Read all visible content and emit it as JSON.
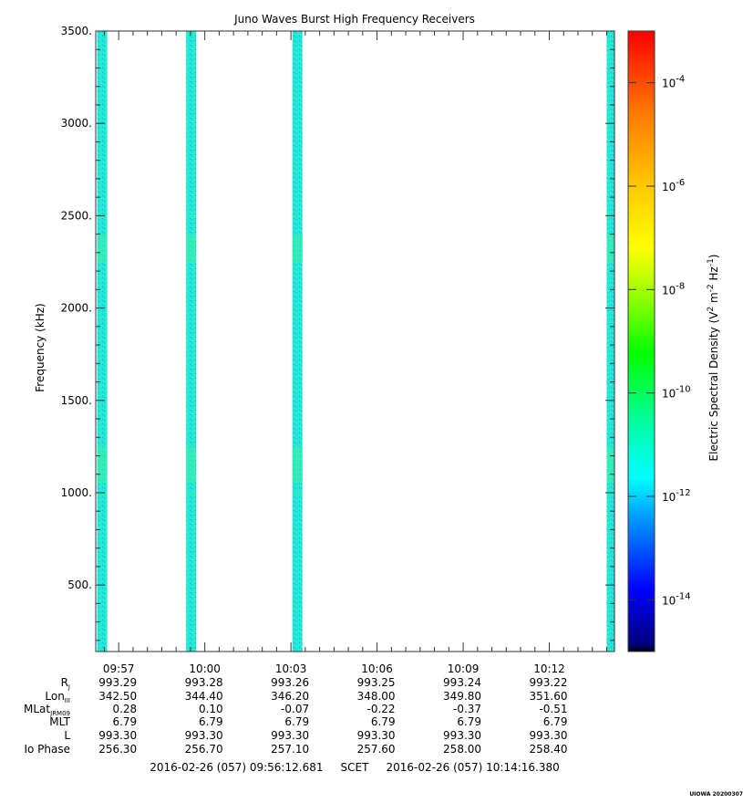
{
  "chart_data": {
    "type": "heatmap",
    "title": "Juno Waves Burst High Frequency Receivers",
    "ylabel": "Frequency (kHz)",
    "ylim": [
      140,
      3500
    ],
    "y_ticks": [
      "500.",
      "1000.",
      "1500.",
      "2000.",
      "2500.",
      "3000.",
      "3500."
    ],
    "y_tick_values": [
      500,
      1000,
      1500,
      2000,
      2500,
      3000,
      3500
    ],
    "x_tick_labels": [
      "09:57",
      "10:00",
      "10:03",
      "10:06",
      "10:09",
      "10:12"
    ],
    "x_tick_minutes": [
      597,
      600,
      603,
      606,
      609,
      612
    ],
    "x_range_minutes": [
      596.2,
      614.27
    ],
    "bursts_start_minutes": [
      596.25,
      599.35,
      603.05,
      614.0
    ],
    "bursts_end_minutes": [
      596.6,
      599.7,
      603.4,
      614.27
    ],
    "colorbar": {
      "label": "Electric Spectral Density (V",
      "label_sup1": "2",
      "label_mid": " m",
      "label_sup2": "-2",
      "label_mid2": " Hz",
      "label_sup3": "-1",
      "label_end": ")",
      "log_min": -15,
      "log_max": -3,
      "tick_base": "10",
      "tick_exponents": [
        "-14",
        "-12",
        "-10",
        "-8",
        "-6",
        "-4"
      ],
      "tick_values": [
        -14,
        -12,
        -10,
        -8,
        -6,
        -4
      ]
    },
    "ephemeris": {
      "labels": [
        "R",
        "Lon",
        "MLat",
        "MLT",
        "L",
        "Io Phase"
      ],
      "label_subs": [
        "J",
        "III",
        "JRM09",
        "",
        "",
        ""
      ],
      "rows": [
        [
          "993.29",
          "993.28",
          "993.26",
          "993.25",
          "993.24",
          "993.22"
        ],
        [
          "342.50",
          "344.40",
          "346.20",
          "348.00",
          "349.80",
          "351.60"
        ],
        [
          "0.28",
          "0.10",
          "-0.07",
          "-0.22",
          "-0.37",
          "-0.51"
        ],
        [
          "6.79",
          "6.79",
          "6.79",
          "6.79",
          "6.79",
          "6.79"
        ],
        [
          "993.30",
          "993.30",
          "993.30",
          "993.30",
          "993.30",
          "993.30"
        ],
        [
          "256.30",
          "256.70",
          "257.10",
          "257.60",
          "258.00",
          "258.40"
        ]
      ]
    },
    "time_range_text": "2016-02-26 (057) 09:56:12.681     SCET     2016-02-26 (057) 10:14:16.380",
    "footer": "UIOWA 20200307"
  }
}
